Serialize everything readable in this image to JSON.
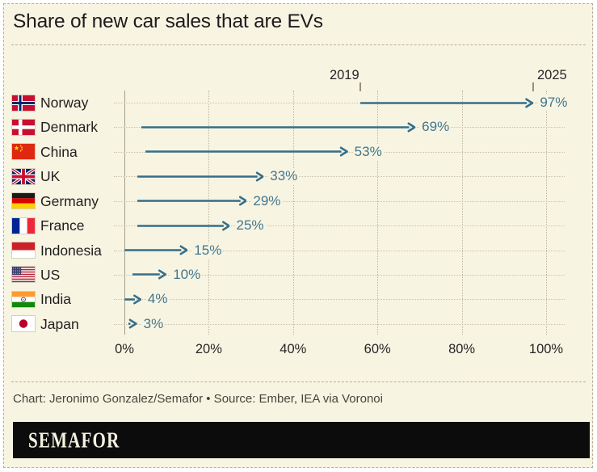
{
  "header": {
    "title": "Share of new car sales that are EVs"
  },
  "chart_data": {
    "type": "arrow-range",
    "title": "Share of new car sales that are EVs",
    "xlabel": "",
    "ylabel": "",
    "xlim": [
      0,
      100
    ],
    "grid": "dotted-vertical",
    "start_year_label": "2019",
    "end_year_label": "2025",
    "x_ticks": [
      {
        "value": 0,
        "label": "0%"
      },
      {
        "value": 20,
        "label": "20%"
      },
      {
        "value": 40,
        "label": "40%"
      },
      {
        "value": 60,
        "label": "60%"
      },
      {
        "value": 80,
        "label": "80%"
      },
      {
        "value": 100,
        "label": "100%"
      }
    ],
    "rows": [
      {
        "country": "Norway",
        "flag": "norway",
        "start": 56,
        "end": 97,
        "end_label": "97%"
      },
      {
        "country": "Denmark",
        "flag": "denmark",
        "start": 4,
        "end": 69,
        "end_label": "69%"
      },
      {
        "country": "China",
        "flag": "china",
        "start": 5,
        "end": 53,
        "end_label": "53%"
      },
      {
        "country": "UK",
        "flag": "uk",
        "start": 3,
        "end": 33,
        "end_label": "33%"
      },
      {
        "country": "Germany",
        "flag": "germany",
        "start": 3,
        "end": 29,
        "end_label": "29%"
      },
      {
        "country": "France",
        "flag": "france",
        "start": 3,
        "end": 25,
        "end_label": "25%"
      },
      {
        "country": "Indonesia",
        "flag": "indonesia",
        "start": 0,
        "end": 15,
        "end_label": "15%"
      },
      {
        "country": "US",
        "flag": "us",
        "start": 2,
        "end": 10,
        "end_label": "10%"
      },
      {
        "country": "India",
        "flag": "india",
        "start": 0,
        "end": 4,
        "end_label": "4%"
      },
      {
        "country": "Japan",
        "flag": "japan",
        "start": 1,
        "end": 3,
        "end_label": "3%"
      }
    ]
  },
  "footer": {
    "credit": "Chart: Jeronimo Gonzalez/Semafor • Source: Ember, IEA via Voronoi",
    "logo": "SEMAFOR"
  },
  "colors": {
    "background": "#f8f4e2",
    "arrow": "#366f8a",
    "value_label": "#41768d",
    "title": "#1c1c1c",
    "axis_text": "#262626",
    "grid": "#bcb6a1",
    "leader": "#c9c3ad",
    "axis_line": "#a39e8c",
    "year_tick": "#95907f",
    "border_dash": "#b5b09d",
    "credit_text": "#45453c",
    "logo_bar": "#0c0c0c"
  }
}
